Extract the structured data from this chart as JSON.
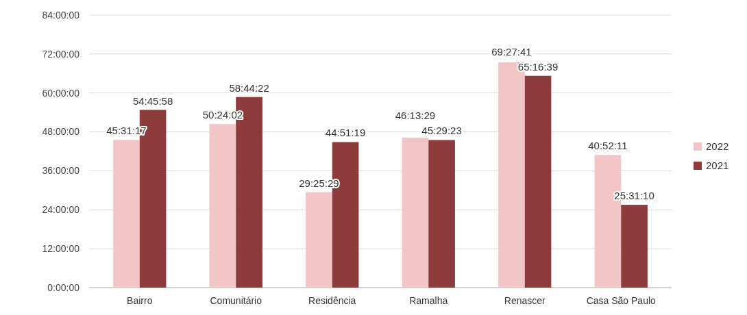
{
  "chart_data": {
    "type": "bar",
    "categories": [
      "Bairro",
      "Comunitário",
      "Residência",
      "Ramalha",
      "Renascer",
      "Casa São Paulo"
    ],
    "series": [
      {
        "name": "2022",
        "color": "#f2c6c6",
        "values": [
          45.5214,
          50.4006,
          29.4247,
          46.2247,
          69.4614,
          40.8697
        ],
        "value_labels": [
          "45:31:17",
          "50:24:02",
          "29:25:29",
          "46:13:29",
          "69:27:41",
          "40:52:11"
        ]
      },
      {
        "name": "2021",
        "color": "#8e3b3b",
        "values": [
          54.7661,
          58.7394,
          44.8553,
          45.4897,
          65.2775,
          25.5194
        ],
        "value_labels": [
          "54:45:58",
          "58:44:22",
          "44:51:19",
          "45:29:23",
          "65:16:39",
          "25:31:10"
        ]
      }
    ],
    "ylim": [
      0,
      84
    ],
    "yticks": [
      {
        "value": 0,
        "label": "0:00:00"
      },
      {
        "value": 12,
        "label": "12:00:00"
      },
      {
        "value": 24,
        "label": "24:00:00"
      },
      {
        "value": 36,
        "label": "36:00:00"
      },
      {
        "value": 48,
        "label": "48:00:00"
      },
      {
        "value": 60,
        "label": "60:00:00"
      },
      {
        "value": 72,
        "label": "72:00:00"
      },
      {
        "value": 84,
        "label": "84:00:00"
      }
    ],
    "grid": "y",
    "legend": "right"
  }
}
